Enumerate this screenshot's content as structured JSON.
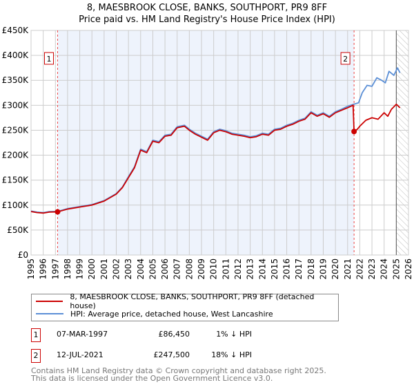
{
  "title": "8, MAESBROOK CLOSE, BANKS, SOUTHPORT, PR9 8FF",
  "subtitle": "Price paid vs. HM Land Registry's House Price Index (HPI)",
  "colors": {
    "property": "#cc0000",
    "hpi": "#5b8fd6",
    "shade": "#eef3fc"
  },
  "chart_data": {
    "type": "line",
    "title": "8, MAESBROOK CLOSE, BANKS, SOUTHPORT, PR9 8FF",
    "xlabel": "",
    "ylabel": "",
    "xlim": [
      1995,
      2026
    ],
    "ylim": [
      0,
      450000
    ],
    "x_ticks": [
      "1995",
      "1996",
      "1997",
      "1998",
      "1999",
      "2000",
      "2001",
      "2002",
      "2003",
      "2004",
      "2005",
      "2006",
      "2007",
      "2008",
      "2009",
      "2010",
      "2011",
      "2012",
      "2013",
      "2014",
      "2015",
      "2016",
      "2017",
      "2018",
      "2019",
      "2020",
      "2021",
      "2022",
      "2023",
      "2024",
      "2025",
      "2026"
    ],
    "y_ticks": [
      "£0",
      "£50K",
      "£100K",
      "£150K",
      "£200K",
      "£250K",
      "£300K",
      "£350K",
      "£400K",
      "£450K"
    ],
    "grid": true,
    "series": [
      {
        "name": "8, MAESBROOK CLOSE, BANKS, SOUTHPORT, PR9 8FF (detached house)",
        "color": "#cc0000",
        "x": [
          1995,
          1995.5,
          1996,
          1996.5,
          1997.18,
          1998,
          1999,
          2000,
          2001,
          2002,
          2002.5,
          2003,
          2003.5,
          2004,
          2004.5,
          2005,
          2005.5,
          2006,
          2006.5,
          2007,
          2007.6,
          2008,
          2008.5,
          2009,
          2009.5,
          2010,
          2010.5,
          2011,
          2011.5,
          2012,
          2012.5,
          2013,
          2013.5,
          2014,
          2014.5,
          2015,
          2015.5,
          2016,
          2016.5,
          2017,
          2017.5,
          2018,
          2018.5,
          2019,
          2019.5,
          2020,
          2020.5,
          2021,
          2021.45,
          2021.53,
          2021.8,
          2022,
          2022.5,
          2023,
          2023.5,
          2024,
          2024.3,
          2024.6,
          2025,
          2025.3
        ],
        "y": [
          87000,
          85000,
          84000,
          86000,
          86450,
          92000,
          96000,
          100000,
          108000,
          122000,
          135000,
          155000,
          175000,
          210000,
          205000,
          228000,
          225000,
          238000,
          240000,
          255000,
          258000,
          250000,
          242000,
          236000,
          230000,
          245000,
          250000,
          247000,
          242000,
          240000,
          238000,
          235000,
          237000,
          242000,
          240000,
          250000,
          252000,
          258000,
          262000,
          268000,
          272000,
          285000,
          278000,
          283000,
          276000,
          285000,
          290000,
          295000,
          300000,
          247500,
          252000,
          258000,
          270000,
          275000,
          272000,
          285000,
          278000,
          292000,
          302000,
          295000
        ]
      },
      {
        "name": "HPI: Average price, detached house, West Lancashire",
        "color": "#5b8fd6",
        "x": [
          1995,
          1995.5,
          1996,
          1996.5,
          1997.18,
          1998,
          1999,
          2000,
          2001,
          2002,
          2002.5,
          2003,
          2003.5,
          2004,
          2004.5,
          2005,
          2005.5,
          2006,
          2006.5,
          2007,
          2007.6,
          2008,
          2008.5,
          2009,
          2009.5,
          2010,
          2010.5,
          2011,
          2011.5,
          2012,
          2012.5,
          2013,
          2013.5,
          2014,
          2014.5,
          2015,
          2015.5,
          2016,
          2016.5,
          2017,
          2017.5,
          2018,
          2018.5,
          2019,
          2019.5,
          2020,
          2020.5,
          2021,
          2021.5,
          2021.9,
          2022.2,
          2022.6,
          2023,
          2023.4,
          2023.8,
          2024.1,
          2024.4,
          2024.8,
          2025.1,
          2025.3
        ],
        "y": [
          88000,
          86000,
          85000,
          87000,
          87300,
          93000,
          97000,
          101000,
          109000,
          123000,
          136000,
          157000,
          177000,
          212000,
          207000,
          230000,
          227000,
          240000,
          242000,
          257000,
          260000,
          252000,
          244000,
          238000,
          232000,
          247000,
          252000,
          249000,
          244000,
          242000,
          240000,
          237000,
          239000,
          244000,
          242000,
          252000,
          254000,
          260000,
          264000,
          270000,
          274000,
          287000,
          280000,
          285000,
          278000,
          287000,
          292000,
          298000,
          302000,
          305000,
          325000,
          340000,
          338000,
          355000,
          350000,
          345000,
          368000,
          360000,
          375000,
          365000
        ]
      }
    ],
    "annotations": [
      {
        "label": "1",
        "x": 1997.18,
        "y": 86450
      },
      {
        "label": "2",
        "x": 2021.53,
        "y": 247500
      }
    ]
  },
  "legend": {
    "property": "8, MAESBROOK CLOSE, BANKS, SOUTHPORT, PR9 8FF (detached house)",
    "hpi": "HPI: Average price, detached house, West Lancashire"
  },
  "transactions": [
    {
      "num": "1",
      "date": "07-MAR-1997",
      "price": "£86,450",
      "delta": "1% ↓ HPI"
    },
    {
      "num": "2",
      "date": "12-JUL-2021",
      "price": "£247,500",
      "delta": "18% ↓ HPI"
    }
  ],
  "footer": [
    "Contains HM Land Registry data © Crown copyright and database right 2025.",
    "This data is licensed under the Open Government Licence v3.0."
  ]
}
